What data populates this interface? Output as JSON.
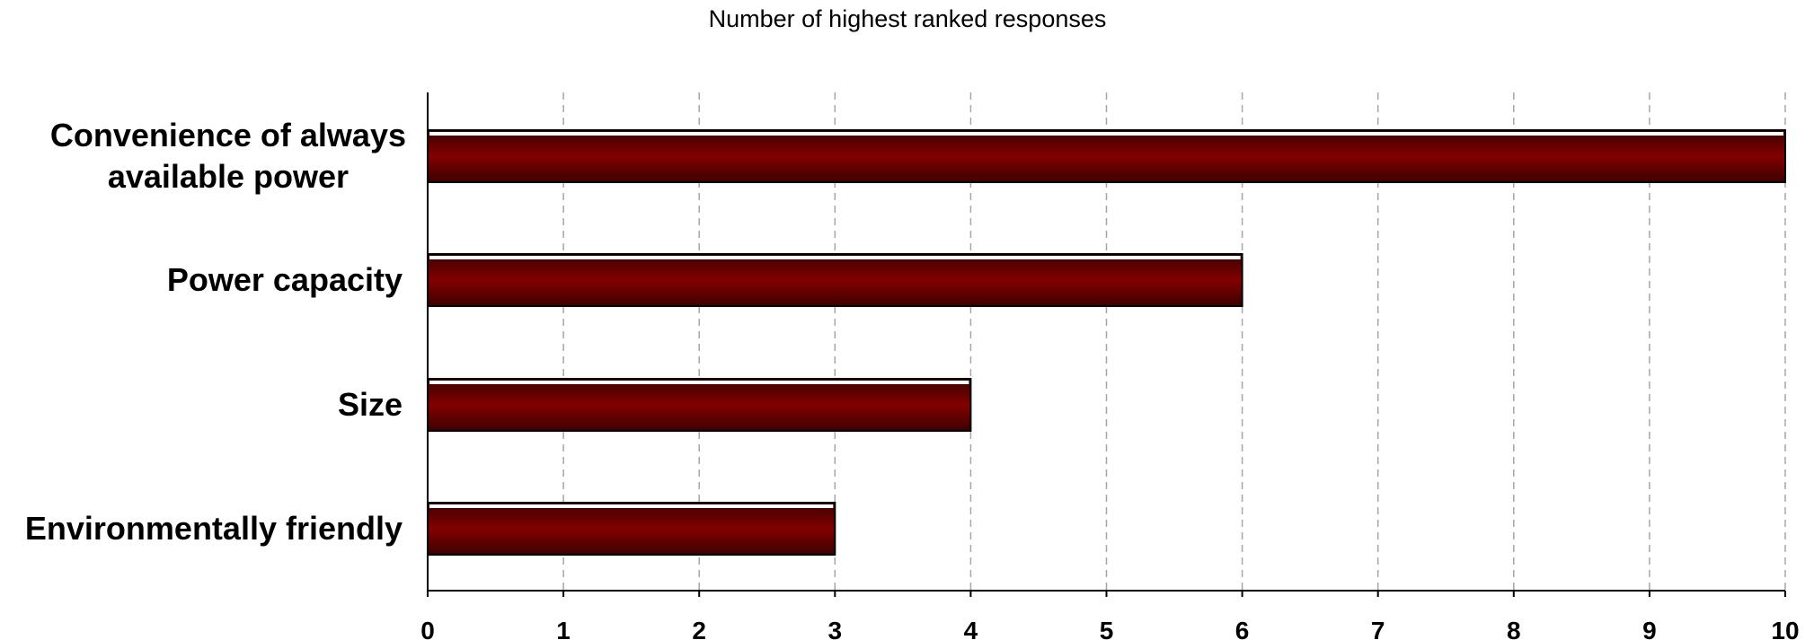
{
  "chart_data": {
    "type": "bar",
    "orientation": "horizontal",
    "title": "Number of highest ranked responses",
    "xlabel": "",
    "ylabel": "",
    "categories": [
      [
        "Convenience of always",
        "available power"
      ],
      [
        "Power capacity"
      ],
      [
        "Size"
      ],
      [
        "Environmentally friendly"
      ]
    ],
    "values": [
      10,
      6,
      4,
      3
    ],
    "xlim": [
      0,
      10
    ],
    "xticks": [
      "0",
      "1",
      "2",
      "3",
      "4",
      "5",
      "6",
      "7",
      "8",
      "9",
      "10"
    ],
    "grid": "vertical dashed",
    "legend": "none",
    "bar_color": "#7a0000"
  }
}
